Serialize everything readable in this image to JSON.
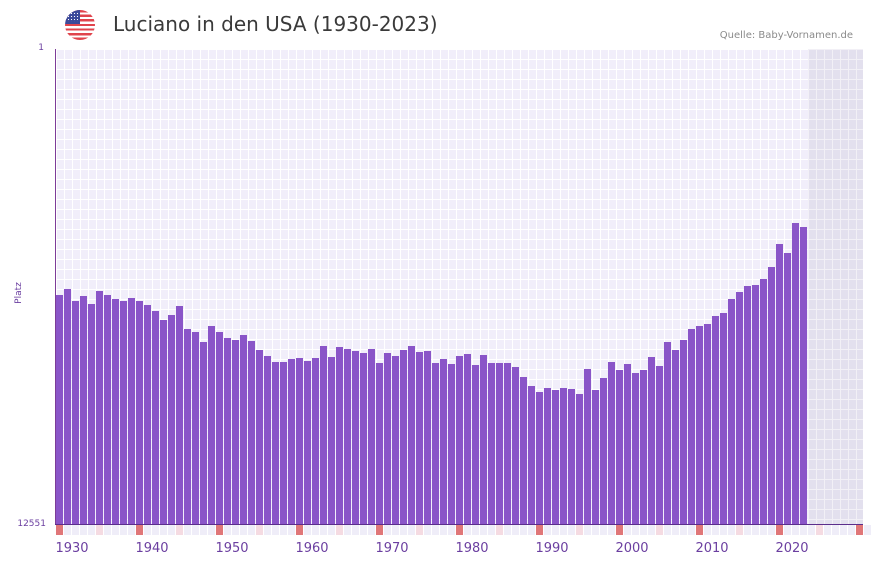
{
  "header": {
    "title": "Luciano in den USA (1930-2023)",
    "source": "Quelle: Baby-Vornamen.de",
    "flag_icon": "us-flag-icon"
  },
  "colors": {
    "bar": "#8a55c8",
    "plot_bg": "#f1eefa",
    "future_bg": "#e3e0ee",
    "decade_marker": "#e07678",
    "half_decade_marker": "#f5dbe2",
    "axis_text": "#6b3fa0"
  },
  "chart_data": {
    "type": "bar",
    "title": "Luciano in den USA (1930-2023)",
    "xlabel": "",
    "ylabel": "Platz",
    "y_inverted": true,
    "ylim": [
      1,
      12551
    ],
    "y_ticks": [
      "1",
      "12551"
    ],
    "x_ticks": [
      "1930",
      "1940",
      "1950",
      "1960",
      "1970",
      "1980",
      "1990",
      "2000",
      "2010",
      "2020"
    ],
    "x_range": [
      1930,
      2030
    ],
    "grid": true,
    "legend": null,
    "categories": [
      1930,
      1931,
      1932,
      1933,
      1934,
      1935,
      1936,
      1937,
      1938,
      1939,
      1940,
      1941,
      1942,
      1943,
      1944,
      1945,
      1946,
      1947,
      1948,
      1949,
      1950,
      1951,
      1952,
      1953,
      1954,
      1955,
      1956,
      1957,
      1958,
      1959,
      1960,
      1961,
      1962,
      1963,
      1964,
      1965,
      1966,
      1967,
      1968,
      1969,
      1970,
      1971,
      1972,
      1973,
      1974,
      1975,
      1976,
      1977,
      1978,
      1979,
      1980,
      1981,
      1982,
      1983,
      1984,
      1985,
      1986,
      1987,
      1988,
      1989,
      1990,
      1991,
      1992,
      1993,
      1994,
      1995,
      1996,
      1997,
      1998,
      1999,
      2000,
      2001,
      2002,
      2003,
      2004,
      2005,
      2006,
      2007,
      2008,
      2009,
      2010,
      2011,
      2012,
      2013,
      2014,
      2015,
      2016,
      2017,
      2018,
      2019,
      2020,
      2021,
      2022,
      2023
    ],
    "values": [
      6489,
      6331,
      6648,
      6516,
      6727,
      6384,
      6489,
      6595,
      6648,
      6569,
      6648,
      6754,
      6912,
      7150,
      7018,
      6780,
      7387,
      7466,
      7730,
      7308,
      7466,
      7625,
      7677,
      7546,
      7704,
      7942,
      8101,
      8259,
      8259,
      8180,
      8153,
      8233,
      8153,
      7836,
      8127,
      7863,
      7916,
      7968,
      8021,
      7916,
      8286,
      8021,
      8101,
      7942,
      7836,
      7995,
      7968,
      8286,
      8180,
      8312,
      8101,
      8048,
      8338,
      8074,
      8286,
      8286,
      8286,
      8391,
      8655,
      8893,
      9051,
      8946,
      8999,
      8946,
      8972,
      9104,
      8444,
      8999,
      8682,
      8259,
      8470,
      8312,
      8550,
      8470,
      8127,
      8365,
      7730,
      7942,
      7677,
      7387,
      7308,
      7255,
      7044,
      6965,
      6595,
      6410,
      6252,
      6225,
      6067,
      5750,
      5142,
      5380,
      4588,
      4693
    ]
  },
  "axes": {
    "y_top_label": "1",
    "y_bottom_label": "12551",
    "y_title": "Platz",
    "x_labels": [
      "1930",
      "1940",
      "1950",
      "1960",
      "1970",
      "1980",
      "1990",
      "2000",
      "2010",
      "2020"
    ]
  }
}
